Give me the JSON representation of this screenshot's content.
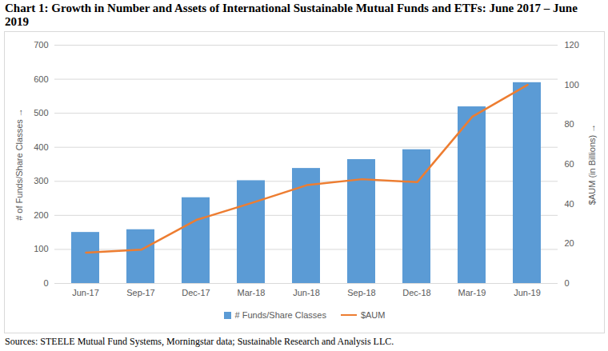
{
  "chart_data": {
    "type": "bar",
    "title": "Chart 1:  Growth in Number and Assets of International Sustainable Mutual Funds and ETFs:  June 2017 – June 2019",
    "categories": [
      "Jun-17",
      "Sep-17",
      "Dec-17",
      "Mar-18",
      "Jun-18",
      "Sep-18",
      "Dec-18",
      "Mar-19",
      "Jun-19"
    ],
    "series": [
      {
        "name": "# Funds/Share Classes",
        "type": "bar",
        "color": "#5b9bd5",
        "values": [
          150,
          158,
          252,
          302,
          338,
          364,
          393,
          519,
          590
        ]
      },
      {
        "name": "$AUM",
        "type": "line",
        "color": "#ed7d31",
        "axis": "y2",
        "values": [
          15.5,
          17,
          32,
          40.5,
          49.5,
          52.5,
          51,
          84,
          100
        ]
      }
    ],
    "ylabel": "# of Funds/Share Classes",
    "y2label": "$AUM (in Billions)",
    "ylim": [
      0,
      700
    ],
    "yticks": [
      0,
      100,
      200,
      300,
      400,
      500,
      600,
      700
    ],
    "y2lim": [
      0,
      120
    ],
    "y2ticks": [
      0,
      20,
      40,
      60,
      80,
      100,
      120
    ],
    "grid": true,
    "legend": "bottom",
    "caption": "Sources:  STEELE Mutual Fund Systems, Morningstar data; Sustainable Research and Analysis LLC."
  }
}
